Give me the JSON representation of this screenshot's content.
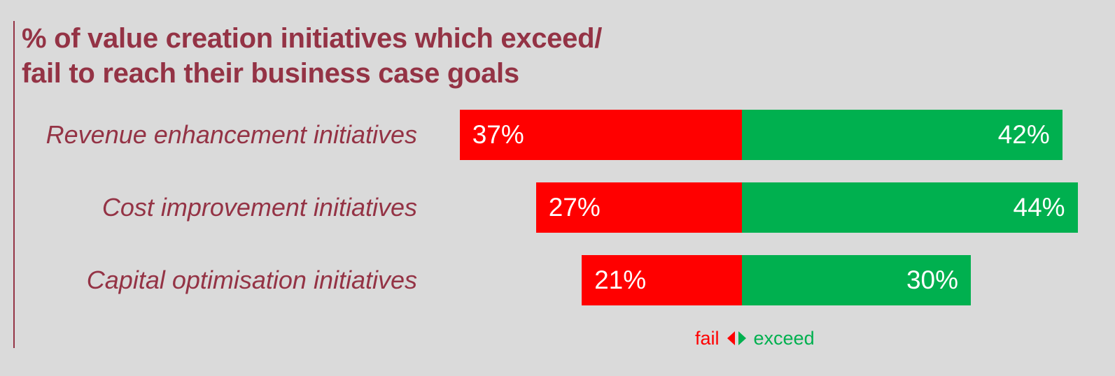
{
  "title_lines": [
    "% of value creation initiatives which exceed/",
    "fail to reach their business case goals"
  ],
  "legend": {
    "fail_label": "fail",
    "exceed_label": "exceed"
  },
  "colors": {
    "title": "#943345",
    "fail": "#ff0000",
    "exceed": "#00b04f"
  },
  "chart_data": {
    "type": "bar",
    "orientation": "horizontal-diverging",
    "title": "% of value creation initiatives which exceed/ fail to reach their business case goals",
    "categories": [
      "Revenue enhancement initiatives",
      "Cost improvement initiatives",
      "Capital optimisation initiatives"
    ],
    "series": [
      {
        "name": "fail",
        "values": [
          37,
          27,
          21
        ],
        "labels": [
          "37%",
          "27%",
          "21%"
        ],
        "direction": "left"
      },
      {
        "name": "exceed",
        "values": [
          42,
          44,
          30
        ],
        "labels": [
          "42%",
          "44%",
          "30%"
        ],
        "direction": "right"
      }
    ],
    "unit": "%"
  }
}
